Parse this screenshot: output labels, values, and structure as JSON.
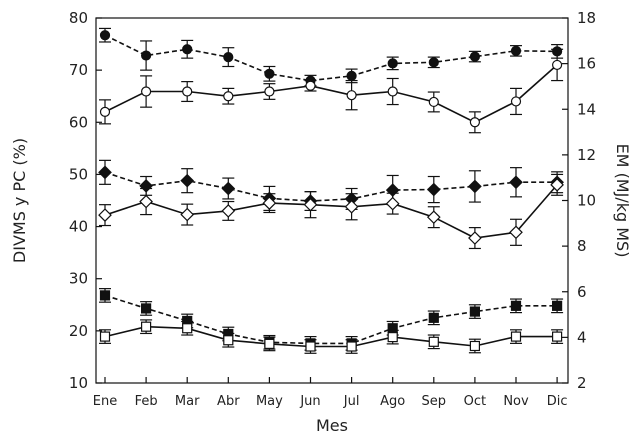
{
  "chart_data": {
    "type": "line",
    "xlabel": "Mes",
    "ylabel_left": "DIVMS y PC (%)",
    "ylabel_right": "EM (MJ/kg MS)",
    "categories": [
      "Ene",
      "Feb",
      "Mar",
      "Abr",
      "May",
      "Jun",
      "Jul",
      "Ago",
      "Sep",
      "Oct",
      "Nov",
      "Dic"
    ],
    "ylim_left": [
      10,
      80
    ],
    "yticks_left": [
      "10",
      "20",
      "30",
      "40",
      "50",
      "60",
      "70",
      "80"
    ],
    "ylim_right": [
      2,
      18
    ],
    "yticks_right": [
      "2",
      "4",
      "6",
      "8",
      "10",
      "12",
      "14",
      "16",
      "18"
    ],
    "series": [
      {
        "marker": "circle",
        "fill": "black",
        "line": "dashed",
        "values": [
          76.7,
          72.8,
          74.0,
          72.5,
          69.3,
          68.0,
          68.9,
          71.3,
          71.5,
          72.6,
          73.7,
          73.6
        ],
        "errors": [
          1.3,
          2.8,
          1.7,
          1.8,
          1.4,
          1.0,
          1.3,
          1.2,
          1.0,
          1.0,
          1.0,
          1.3
        ]
      },
      {
        "marker": "circle",
        "fill": "white",
        "line": "solid",
        "values": [
          62.0,
          65.9,
          65.9,
          65.0,
          65.9,
          67.0,
          65.2,
          65.9,
          63.9,
          60.0,
          64.0,
          71.0
        ],
        "errors": [
          2.3,
          3.0,
          1.9,
          1.5,
          1.5,
          1.0,
          2.8,
          2.5,
          1.9,
          2.0,
          2.5,
          3.0
        ]
      },
      {
        "marker": "diamond",
        "fill": "black",
        "line": "dashed",
        "values": [
          50.4,
          47.8,
          48.8,
          47.3,
          45.4,
          44.9,
          45.3,
          47.0,
          47.1,
          47.7,
          48.5,
          48.5
        ],
        "errors": [
          2.3,
          1.8,
          2.3,
          2.0,
          2.3,
          1.8,
          2.0,
          2.8,
          2.5,
          3.0,
          2.8,
          2.0
        ]
      },
      {
        "marker": "diamond",
        "fill": "white",
        "line": "solid",
        "values": [
          42.2,
          44.8,
          42.3,
          43.0,
          44.5,
          44.2,
          43.8,
          44.4,
          41.8,
          37.8,
          38.9,
          48.0
        ],
        "errors": [
          2.0,
          2.5,
          2.0,
          1.8,
          1.8,
          2.5,
          2.5,
          2.0,
          2.0,
          2.0,
          2.5,
          2.0
        ]
      },
      {
        "marker": "square",
        "fill": "black",
        "line": "dashed",
        "values": [
          26.8,
          24.3,
          21.9,
          19.4,
          17.8,
          17.6,
          17.6,
          20.5,
          22.5,
          23.7,
          24.8,
          24.8
        ],
        "errors": [
          1.3,
          1.3,
          1.3,
          1.3,
          1.3,
          1.3,
          1.3,
          1.3,
          1.3,
          1.3,
          1.3,
          1.3
        ]
      },
      {
        "marker": "square",
        "fill": "white",
        "line": "solid",
        "values": [
          18.9,
          20.8,
          20.5,
          18.2,
          17.5,
          17.0,
          17.0,
          18.8,
          17.9,
          17.1,
          18.9,
          18.9
        ],
        "errors": [
          1.3,
          1.3,
          1.3,
          1.3,
          1.3,
          1.3,
          1.3,
          1.3,
          1.3,
          1.3,
          1.3,
          1.3
        ]
      }
    ]
  }
}
